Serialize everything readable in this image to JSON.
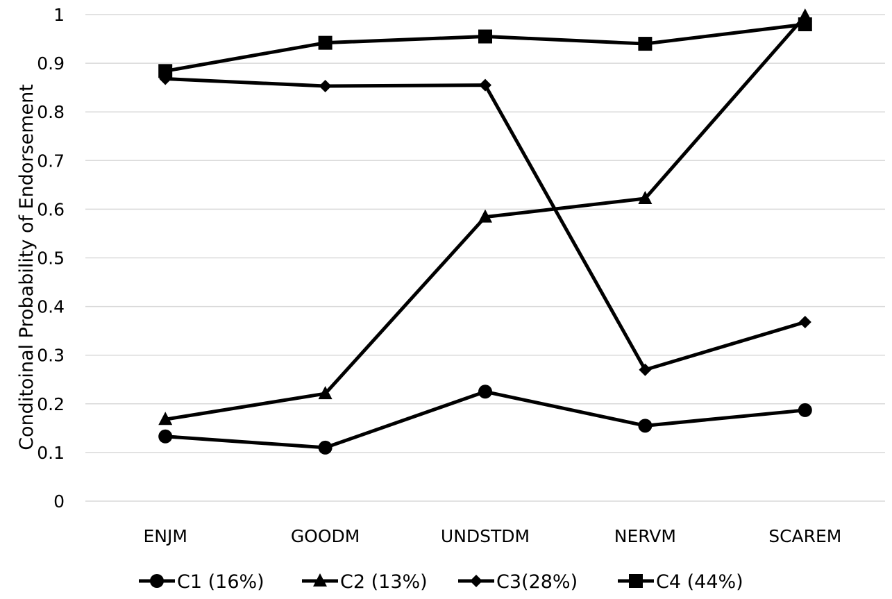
{
  "chart_data": {
    "type": "line",
    "title": "",
    "xlabel": "",
    "ylabel": "Conditoinal Probability of Endorsement",
    "categories": [
      "ENJM",
      "GOODM",
      "UNDSTDM",
      "NERVM",
      "SCAREM"
    ],
    "ylim": [
      0,
      1
    ],
    "yticks": [
      "0",
      "0.1",
      "0.2",
      "0.3",
      "0.4",
      "0.5",
      "0.6",
      "0.7",
      "0.8",
      "0.9",
      "1"
    ],
    "grid": true,
    "legend_position": "bottom",
    "series": [
      {
        "name": "C1 (16%)",
        "marker": "circle",
        "values": [
          0.133,
          0.11,
          0.225,
          0.155,
          0.187
        ]
      },
      {
        "name": "C2 (13%)",
        "marker": "triangle",
        "values": [
          0.168,
          0.221,
          0.584,
          0.622,
          0.997
        ]
      },
      {
        "name": "C3(28%)",
        "marker": "diamond",
        "values": [
          0.868,
          0.853,
          0.855,
          0.27,
          0.368
        ]
      },
      {
        "name": "C4 (44%)",
        "marker": "square",
        "values": [
          0.884,
          0.942,
          0.955,
          0.94,
          0.98
        ]
      }
    ],
    "colors": {
      "line": "#000000",
      "grid": "#d9d9d9"
    }
  }
}
